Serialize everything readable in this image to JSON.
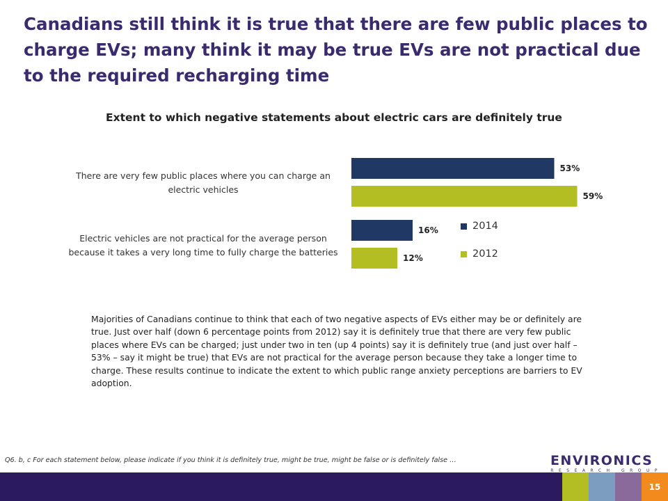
{
  "slide": {
    "title": "Canadians still think it is true that there are few public places to charge EVs; many think it may be true EVs are not practical due to the required recharging time",
    "summary": "Majorities of Canadians continue to think that each of two negative aspects of EVs either may be or definitely are true. Just over half (down 6 percentage points from 2012) say it is definitely true that there are very few public places where EVs can be charged; just under two in ten (up 4 points) say it is definitely true (and just over half – 53% – say it might be true) that EVs are not practical for the average person because they take a longer time to charge. These results continue to indicate the extent to which public range anxiety perceptions are barriers to EV adoption.",
    "footnote": "Q6. b, c For each statement below, please indicate if you think it is definitely true, might be true, might be false or is definitely false …",
    "page_number": "15"
  },
  "logo": {
    "main": "ENVIRONICS",
    "sub": "RESEARCH GROUP"
  },
  "colors": {
    "title": "#3a2a6e",
    "series_2014": "#1f3864",
    "series_2012": "#b3be22",
    "footer": "#2b1a5e",
    "footer_green": "#b3be22",
    "footer_blue": "#7d9dc0",
    "footer_purple": "#8a6a9a",
    "footer_orange": "#f28a1e"
  },
  "chart_data": {
    "type": "bar",
    "orientation": "horizontal",
    "title": "Extent to which negative statements about electric cars are definitely true",
    "categories": [
      "There are very few public places where you can charge an electric vehicles",
      "Electric vehicles are not practical for the average person because it takes a very long time to fully charge the batteries"
    ],
    "series": [
      {
        "name": "2014",
        "values": [
          53,
          16
        ],
        "labels": [
          "53%",
          "16%"
        ]
      },
      {
        "name": "2012",
        "values": [
          59,
          12
        ],
        "labels": [
          "59%",
          "12%"
        ]
      }
    ],
    "xlim": [
      0,
      100
    ],
    "grid": false,
    "legend": "right"
  }
}
